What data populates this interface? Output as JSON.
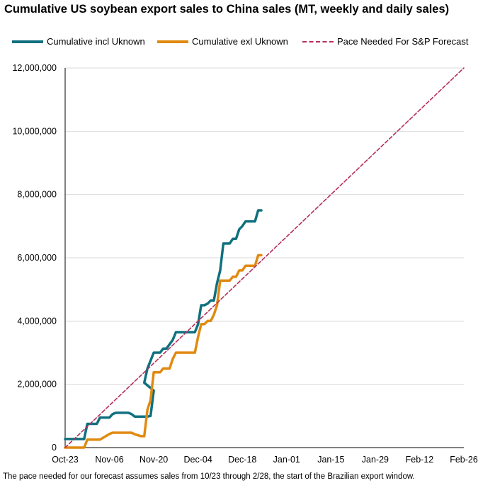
{
  "chart_data": {
    "type": "line",
    "title": "Cumulative US soybean export sales to China sales (MT, weekly and daily sales)",
    "xlabel": "",
    "ylabel": "",
    "x_tick_labels": [
      "Oct-23",
      "Nov-06",
      "Nov-20",
      "Dec-04",
      "Dec-18",
      "Jan-01",
      "Jan-15",
      "Jan-29",
      "Feb-12",
      "Feb-26"
    ],
    "xlim_days": [
      0,
      126
    ],
    "ylim": [
      0,
      12000000
    ],
    "y_ticks": [
      0,
      2000000,
      4000000,
      6000000,
      8000000,
      10000000,
      12000000
    ],
    "y_tick_labels": [
      "0",
      "2,000,000",
      "4,000,000",
      "6,000,000",
      "8,000,000",
      "10,000,000",
      "12,000,000"
    ],
    "grid": "horizontal",
    "legend_position": "top",
    "series": [
      {
        "name": "Cumulative incl Uknown",
        "color": "#10707f",
        "style": "solid",
        "x_days": [
          0,
          6,
          7,
          10,
          11,
          14,
          15,
          16,
          20,
          21,
          22,
          26,
          27,
          28,
          25,
          26,
          28,
          29,
          30,
          31,
          32,
          34,
          35,
          36,
          37,
          38,
          39,
          40,
          41,
          42,
          43,
          44,
          45,
          46,
          47,
          48,
          49,
          50,
          51,
          52,
          53,
          54,
          55,
          56,
          57,
          58,
          59,
          60,
          61,
          62
        ],
        "values": [
          270000,
          270000,
          750000,
          750000,
          950000,
          950000,
          1060000,
          1100000,
          1100000,
          1060000,
          980000,
          980000,
          1000000,
          1800000,
          2050000,
          2500000,
          3000000,
          3000000,
          3000000,
          3130000,
          3130000,
          3400000,
          3650000,
          3650000,
          3650000,
          3650000,
          3650000,
          3650000,
          3650000,
          3900000,
          4500000,
          4500000,
          4550000,
          4650000,
          4650000,
          5200000,
          5600000,
          6450000,
          6450000,
          6450000,
          6600000,
          6600000,
          6900000,
          7000000,
          7150000,
          7150000,
          7150000,
          7150000,
          7500000,
          7500000
        ]
      },
      {
        "name": "Cumulative exl Uknown",
        "color": "#e08a10",
        "style": "solid",
        "x_days": [
          0,
          6,
          7,
          10,
          11,
          14,
          15,
          16,
          20,
          21,
          22,
          24,
          25,
          26,
          27,
          28,
          29,
          30,
          31,
          32,
          33,
          34,
          35,
          36,
          37,
          38,
          39,
          40,
          41,
          42,
          43,
          44,
          45,
          46,
          47,
          48,
          49,
          50,
          51,
          52,
          53,
          54,
          55,
          56,
          57,
          58,
          59,
          60,
          61,
          62
        ],
        "values": [
          0,
          0,
          250000,
          250000,
          250000,
          430000,
          470000,
          470000,
          470000,
          470000,
          420000,
          360000,
          360000,
          1200000,
          1500000,
          2380000,
          2380000,
          2380000,
          2500000,
          2500000,
          2500000,
          2800000,
          3000000,
          3000000,
          3000000,
          3000000,
          3000000,
          3000000,
          3000000,
          3500000,
          3900000,
          3900000,
          4000000,
          4000000,
          4200000,
          4500000,
          5280000,
          5280000,
          5280000,
          5280000,
          5400000,
          5400000,
          5600000,
          5600000,
          5750000,
          5750000,
          5750000,
          5750000,
          6080000,
          6080000
        ]
      },
      {
        "name": "Pace Needed For S&P Forecast",
        "color": "#b52e5c",
        "style": "dashed",
        "x_days": [
          0,
          126
        ],
        "values": [
          0,
          12000000
        ]
      }
    ]
  },
  "footnote": "The pace needed for our forecast assumes sales from 10/23 through 2/28, the start of the Brazilian export window."
}
